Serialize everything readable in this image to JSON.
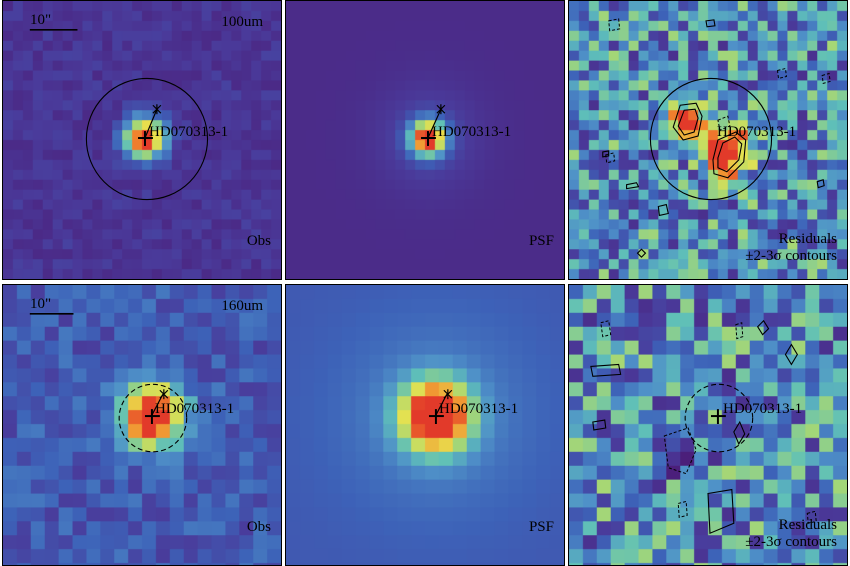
{
  "source_name": "HD070313-1",
  "scale_label": "10\"",
  "residual_label": {
    "line1": "Residuals",
    "line2": "±2-3σ contours"
  },
  "rows": [
    {
      "band": "100um",
      "panels": [
        {
          "type": "observed",
          "label": "Obs"
        },
        {
          "type": "model",
          "label": "PSF"
        },
        {
          "type": "residual",
          "label": ""
        }
      ]
    },
    {
      "band": "160um",
      "panels": [
        {
          "type": "observed",
          "label": "Obs"
        },
        {
          "type": "model",
          "label": "PSF"
        },
        {
          "type": "residual",
          "label": ""
        }
      ]
    }
  ],
  "colormap": [
    "#4b1f7a",
    "#4a3a9a",
    "#3d62b8",
    "#4f91c8",
    "#5fc0b8",
    "#a7d774",
    "#e8e24e",
    "#f28a2e",
    "#e23a2a"
  ],
  "contour_color": "#000000"
}
